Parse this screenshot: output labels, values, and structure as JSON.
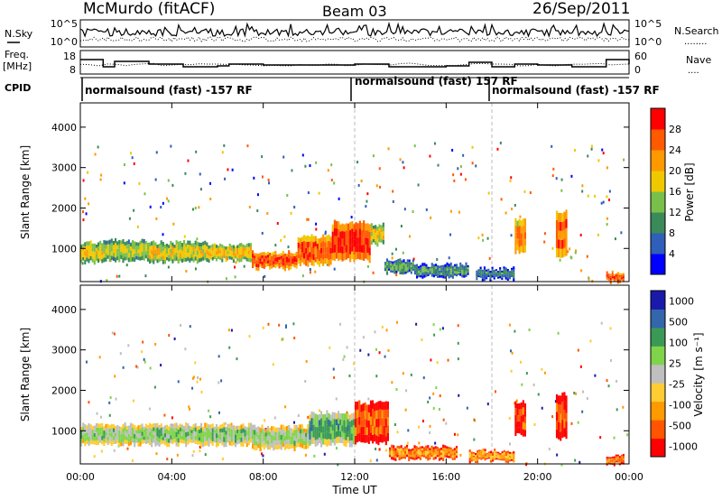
{
  "header": {
    "site": "McMurdo (fitACF)",
    "beam": "Beam 03",
    "date": "26/Sep/2011"
  },
  "side_labels": {
    "nsky": "N.Sky",
    "freq_line1": "Freq.",
    "freq_line2": "[MHz]",
    "cpid": "CPID",
    "nsearch": "N.Search",
    "nave": "Nave",
    "nsearch_dots": "........",
    "nave_dots": "...."
  },
  "noise_panel": {
    "left_ticks": [
      "10^5",
      "10^0"
    ],
    "right_ticks": [
      "10^5",
      "10^0"
    ]
  },
  "freq_panel": {
    "left_ticks": [
      "18",
      "8"
    ],
    "right_ticks": [
      "60",
      "0"
    ]
  },
  "cpid_panel": {
    "segments": [
      {
        "label": "normalsound (fast) -157 RF"
      },
      {
        "label": "normalsound (fast) 157 RF"
      },
      {
        "label": "normalsound (fast) -157 RF"
      }
    ]
  },
  "colors": {
    "power_scale": [
      "#0000ff",
      "#2f5fb8",
      "#3a8a5a",
      "#79c04a",
      "#f0c800",
      "#ff9900",
      "#ff5a00",
      "#ff0000"
    ],
    "velocity_scale": [
      "#ff0000",
      "#ff5500",
      "#ff9a00",
      "#ffcc33",
      "#bfbfbf",
      "#7fd44a",
      "#3a9a55",
      "#3366aa",
      "#1a1aaa"
    ]
  },
  "chart_data": [
    {
      "type": "heatmap",
      "panel": "power",
      "ylabel": "Slant Range [km]",
      "xlabel": "",
      "x_ticks": [
        "00:00",
        "04:00",
        "08:00",
        "12:00",
        "16:00",
        "20:00",
        "00:00"
      ],
      "xlim_hours": [
        0,
        24
      ],
      "ylim": [
        180,
        4600
      ],
      "y_ticks": [
        "1000",
        "2000",
        "3000",
        "4000"
      ],
      "colorbar": {
        "label": "Power [dB]",
        "range": [
          0,
          32
        ],
        "ticks": [
          "4",
          "8",
          "12",
          "16",
          "20",
          "24",
          "28"
        ]
      },
      "bands": [
        {
          "t0": 0.0,
          "t1": 1.0,
          "r0": 650,
          "r1": 1150,
          "level": 0.58
        },
        {
          "t0": 1.0,
          "t1": 3.0,
          "r0": 700,
          "r1": 1200,
          "level": 0.5
        },
        {
          "t0": 3.0,
          "t1": 5.5,
          "r0": 650,
          "r1": 1150,
          "level": 0.55
        },
        {
          "t0": 5.5,
          "t1": 7.5,
          "r0": 700,
          "r1": 1100,
          "level": 0.62
        },
        {
          "t0": 7.5,
          "t1": 9.5,
          "r0": 500,
          "r1": 900,
          "level": 0.9
        },
        {
          "t0": 9.5,
          "t1": 11.0,
          "r0": 600,
          "r1": 1300,
          "level": 0.88
        },
        {
          "t0": 11.0,
          "t1": 12.7,
          "r0": 700,
          "r1": 1650,
          "level": 0.95
        },
        {
          "t0": 12.7,
          "t1": 13.3,
          "r0": 1100,
          "r1": 1600,
          "level": 0.6
        },
        {
          "t0": 13.3,
          "t1": 14.6,
          "r0": 400,
          "r1": 700,
          "level": 0.35
        },
        {
          "t0": 14.6,
          "t1": 17.0,
          "r0": 300,
          "r1": 600,
          "level": 0.3
        },
        {
          "t0": 17.3,
          "t1": 19.0,
          "r0": 250,
          "r1": 500,
          "level": 0.25
        },
        {
          "t0": 19.0,
          "t1": 19.5,
          "r0": 900,
          "r1": 1700,
          "level": 0.8
        },
        {
          "t0": 20.8,
          "t1": 21.3,
          "r0": 800,
          "r1": 1900,
          "level": 0.85
        },
        {
          "t0": 23.0,
          "t1": 23.8,
          "r0": 180,
          "r1": 400,
          "level": 0.9
        }
      ]
    },
    {
      "type": "heatmap",
      "panel": "velocity",
      "ylabel": "Slant Range [km]",
      "xlabel": "Time UT",
      "x_ticks": [
        "00:00",
        "04:00",
        "08:00",
        "12:00",
        "16:00",
        "20:00",
        "00:00"
      ],
      "xlim_hours": [
        0,
        24
      ],
      "ylim": [
        180,
        4600
      ],
      "y_ticks": [
        "1000",
        "2000",
        "3000",
        "4000"
      ],
      "colorbar": {
        "label": "Velocity [m s⁻¹]",
        "ticks": [
          "1000",
          "500",
          "100",
          "25",
          "-25",
          "-100",
          "-500",
          "-1000"
        ]
      },
      "bands": [
        {
          "t0": 0.0,
          "t1": 3.0,
          "r0": 650,
          "r1": 1150,
          "level": 0.6
        },
        {
          "t0": 3.0,
          "t1": 7.5,
          "r0": 650,
          "r1": 1150,
          "level": 0.62
        },
        {
          "t0": 7.5,
          "t1": 10.0,
          "r0": 550,
          "r1": 1100,
          "level": 0.58
        },
        {
          "t0": 10.0,
          "t1": 12.0,
          "r0": 650,
          "r1": 1450,
          "level": 0.7
        },
        {
          "t0": 12.0,
          "t1": 13.5,
          "r0": 700,
          "r1": 1700,
          "level": 0.15
        },
        {
          "t0": 13.5,
          "t1": 16.5,
          "r0": 300,
          "r1": 600,
          "level": 0.25
        },
        {
          "t0": 17.0,
          "t1": 19.0,
          "r0": 250,
          "r1": 500,
          "level": 0.3
        },
        {
          "t0": 19.0,
          "t1": 19.5,
          "r0": 900,
          "r1": 1700,
          "level": 0.12
        },
        {
          "t0": 20.8,
          "t1": 21.3,
          "r0": 800,
          "r1": 1900,
          "level": 0.12
        },
        {
          "t0": 23.0,
          "t1": 23.8,
          "r0": 180,
          "r1": 400,
          "level": 0.2
        }
      ]
    }
  ]
}
